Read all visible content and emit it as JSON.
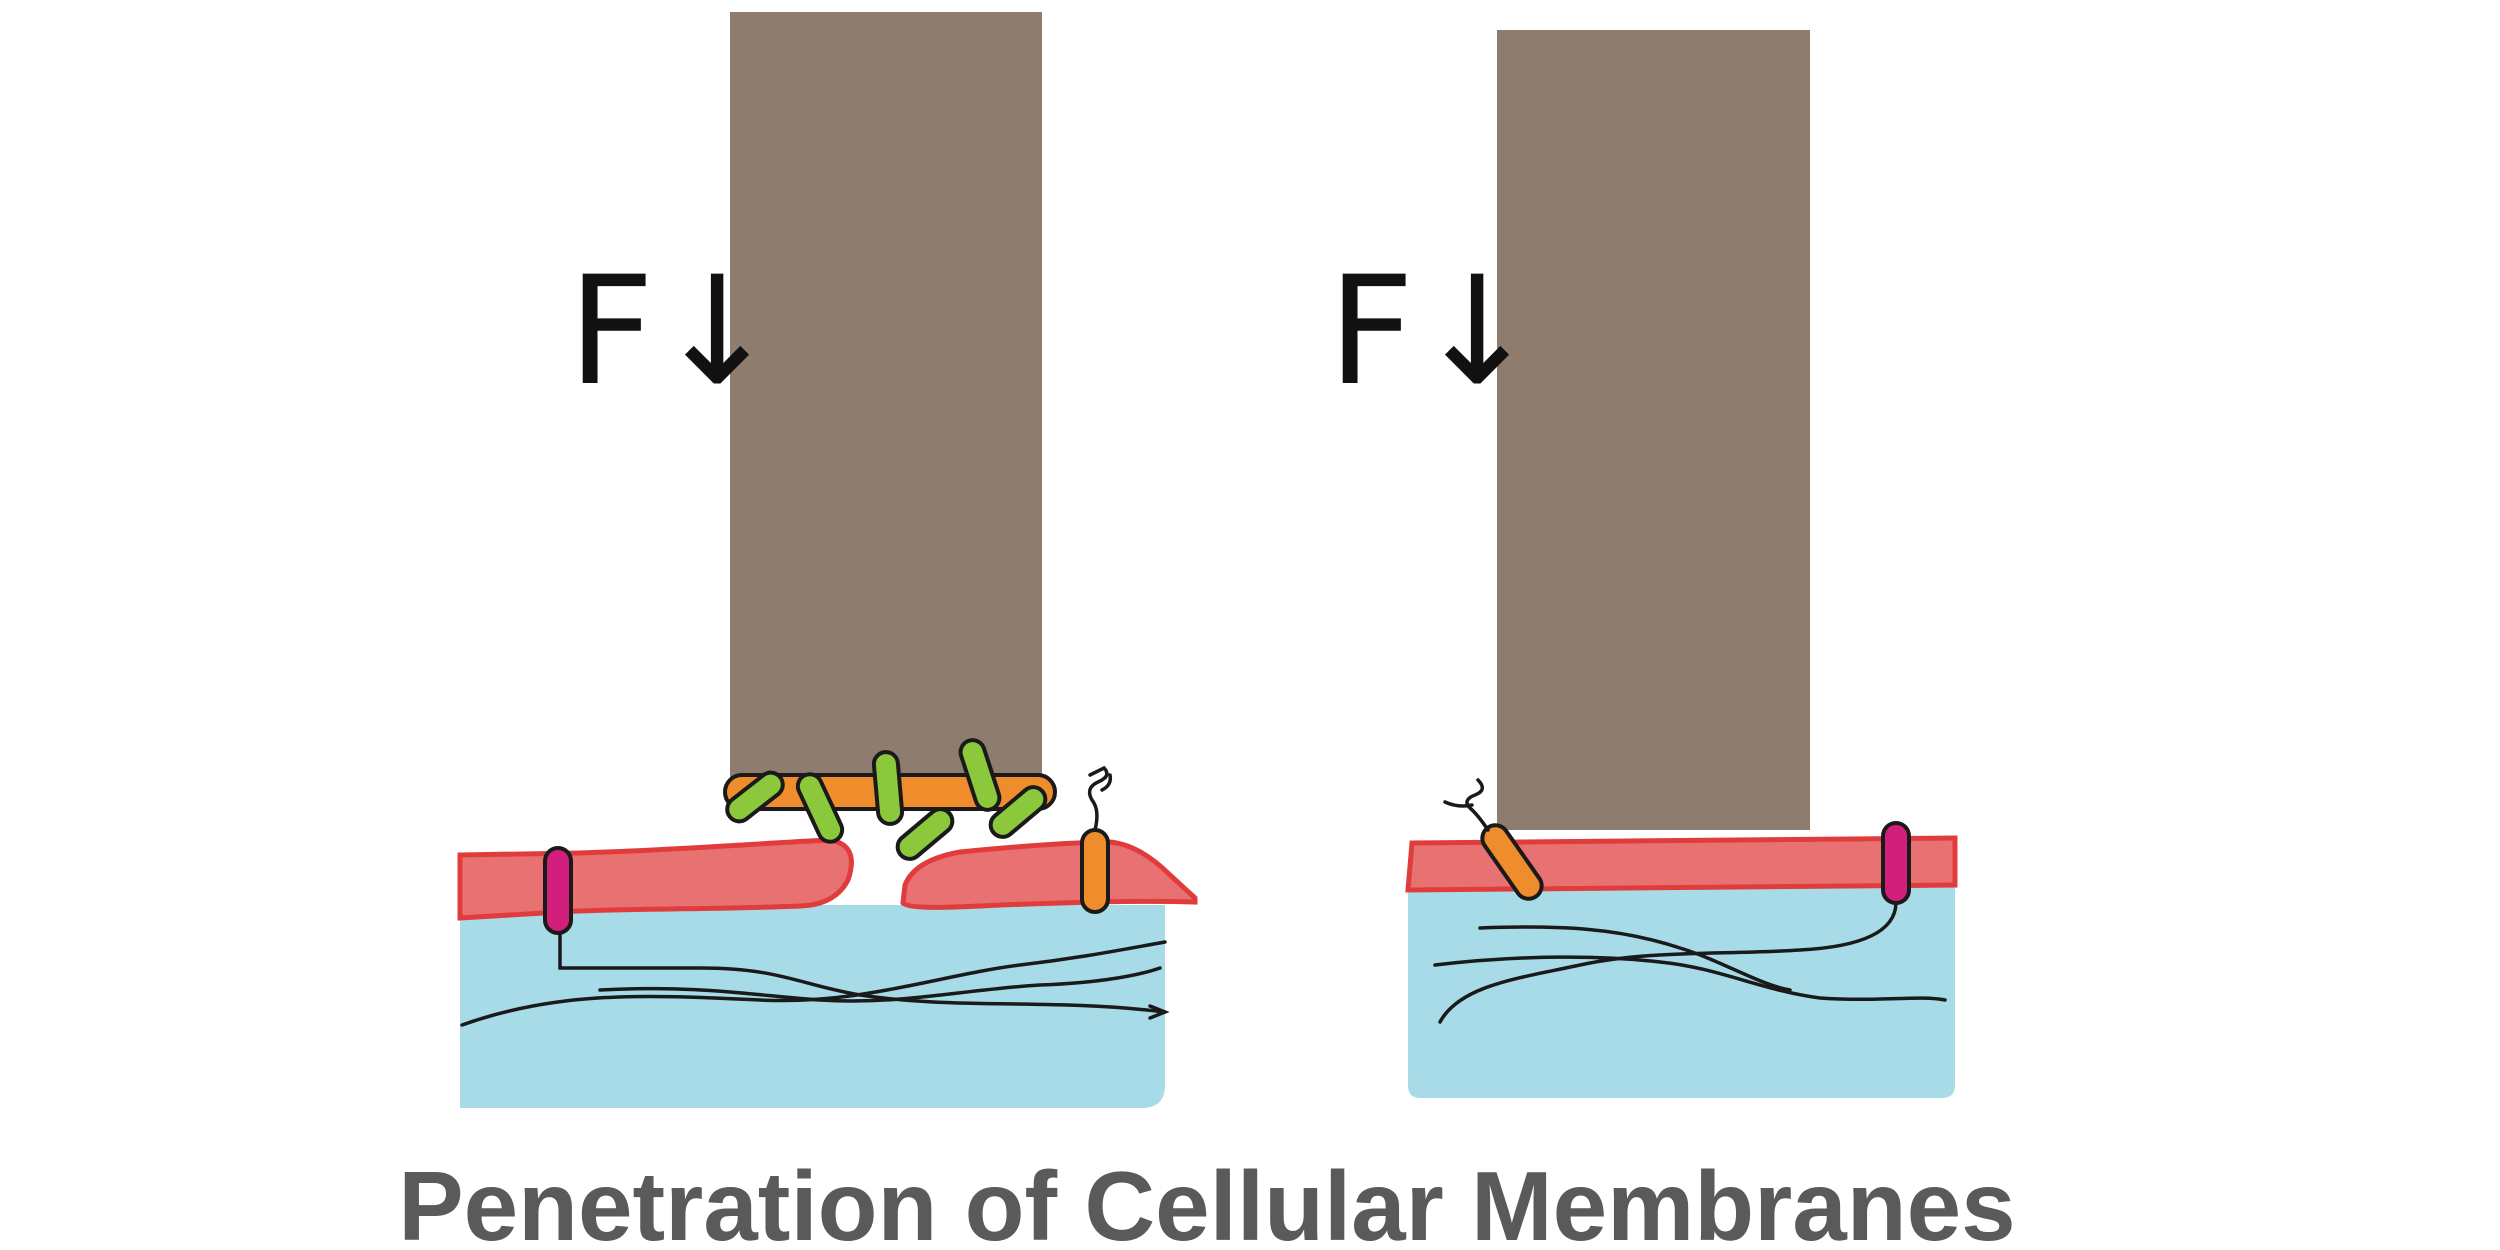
{
  "panels": [
    {
      "id": "left",
      "force_label": "F↓"
    },
    {
      "id": "right",
      "force_label": "F↓"
    }
  ],
  "caption": "Penetration of Cellular Membranes",
  "colors": {
    "pillar": "#8e7d6e",
    "membrane": "#e87272",
    "membrane_edge": "#e03c3c",
    "cytoplasm": "#a8dbe8",
    "protein_magenta": "#d21f7c",
    "bacterium_orange": "#ef8c2c",
    "bacterium_green": "#8cc83c",
    "caption": "#5a5a5a"
  }
}
